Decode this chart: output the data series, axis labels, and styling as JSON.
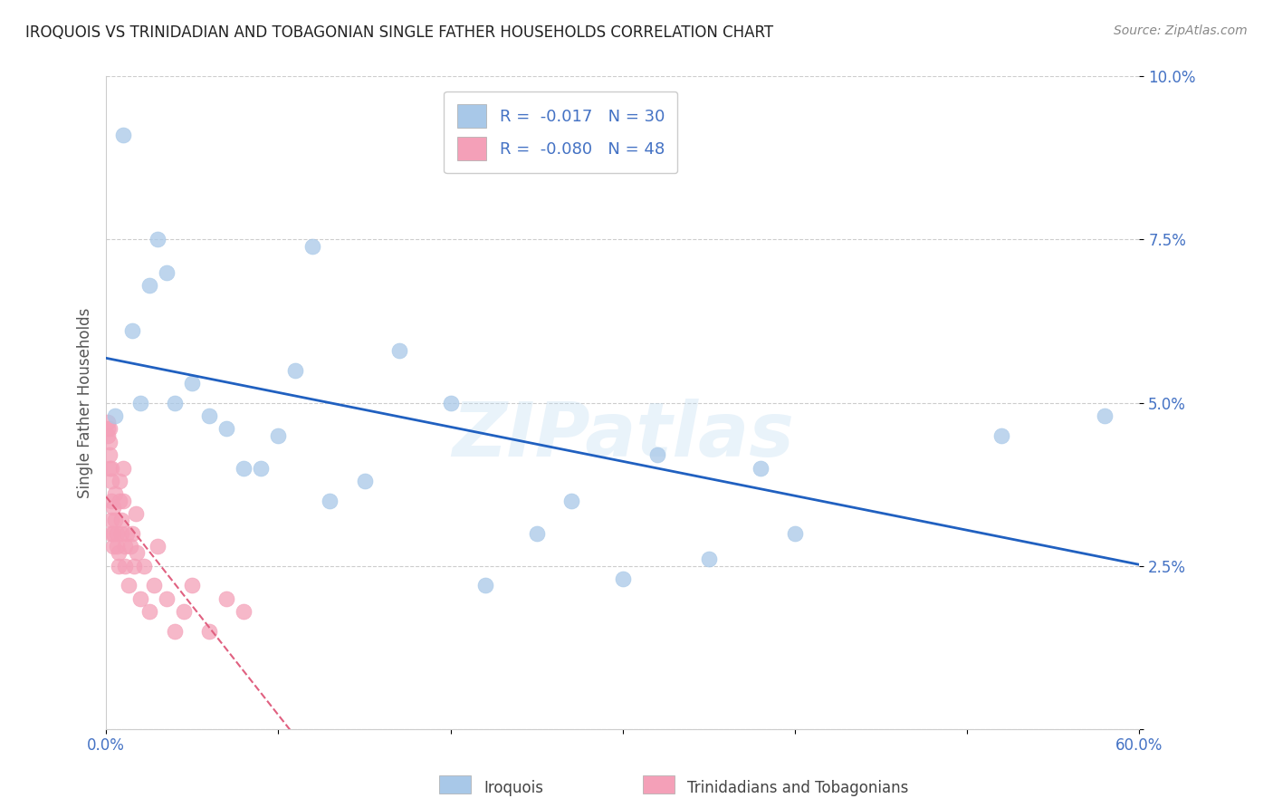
{
  "title": "IROQUOIS VS TRINIDADIAN AND TOBAGONIAN SINGLE FATHER HOUSEHOLDS CORRELATION CHART",
  "source": "Source: ZipAtlas.com",
  "ylabel": "Single Father Households",
  "legend_label1": "Iroquois",
  "legend_label2": "Trinidadians and Tobagonians",
  "R1": -0.017,
  "N1": 30,
  "R2": -0.08,
  "N2": 48,
  "color1": "#a8c8e8",
  "color2": "#f4a0b8",
  "trendline1_color": "#2060c0",
  "trendline2_color": "#e06080",
  "xlim": [
    0.0,
    0.6
  ],
  "ylim": [
    0.0,
    0.1
  ],
  "xtick_positions": [
    0.0,
    0.1,
    0.2,
    0.3,
    0.4,
    0.5,
    0.6
  ],
  "ytick_positions": [
    0.0,
    0.025,
    0.05,
    0.075,
    0.1
  ],
  "ytick_labels": [
    "",
    "2.5%",
    "5.0%",
    "7.5%",
    "10.0%"
  ],
  "watermark": "ZIPatlas",
  "iroquois_x": [
    0.005,
    0.01,
    0.015,
    0.02,
    0.025,
    0.03,
    0.035,
    0.04,
    0.05,
    0.06,
    0.07,
    0.08,
    0.09,
    0.1,
    0.11,
    0.12,
    0.13,
    0.15,
    0.17,
    0.2,
    0.22,
    0.25,
    0.27,
    0.3,
    0.32,
    0.35,
    0.38,
    0.4,
    0.52,
    0.58
  ],
  "iroquois_y": [
    0.048,
    0.091,
    0.061,
    0.05,
    0.068,
    0.075,
    0.07,
    0.05,
    0.053,
    0.048,
    0.046,
    0.04,
    0.04,
    0.045,
    0.055,
    0.074,
    0.035,
    0.038,
    0.058,
    0.05,
    0.022,
    0.03,
    0.035,
    0.023,
    0.042,
    0.026,
    0.04,
    0.03,
    0.045,
    0.048
  ],
  "trinidadian_x": [
    0.001,
    0.001,
    0.001,
    0.002,
    0.002,
    0.002,
    0.002,
    0.003,
    0.003,
    0.003,
    0.003,
    0.003,
    0.004,
    0.004,
    0.004,
    0.005,
    0.005,
    0.006,
    0.006,
    0.007,
    0.007,
    0.008,
    0.008,
    0.009,
    0.009,
    0.01,
    0.01,
    0.011,
    0.011,
    0.012,
    0.013,
    0.014,
    0.015,
    0.016,
    0.017,
    0.018,
    0.02,
    0.022,
    0.025,
    0.028,
    0.03,
    0.035,
    0.04,
    0.045,
    0.05,
    0.06,
    0.07,
    0.08
  ],
  "trinidadian_y": [
    0.045,
    0.047,
    0.046,
    0.04,
    0.042,
    0.044,
    0.046,
    0.03,
    0.032,
    0.035,
    0.038,
    0.04,
    0.028,
    0.03,
    0.034,
    0.032,
    0.036,
    0.028,
    0.03,
    0.025,
    0.027,
    0.035,
    0.038,
    0.03,
    0.032,
    0.035,
    0.04,
    0.025,
    0.028,
    0.03,
    0.022,
    0.028,
    0.03,
    0.025,
    0.033,
    0.027,
    0.02,
    0.025,
    0.018,
    0.022,
    0.028,
    0.02,
    0.015,
    0.018,
    0.022,
    0.015,
    0.02,
    0.018
  ]
}
